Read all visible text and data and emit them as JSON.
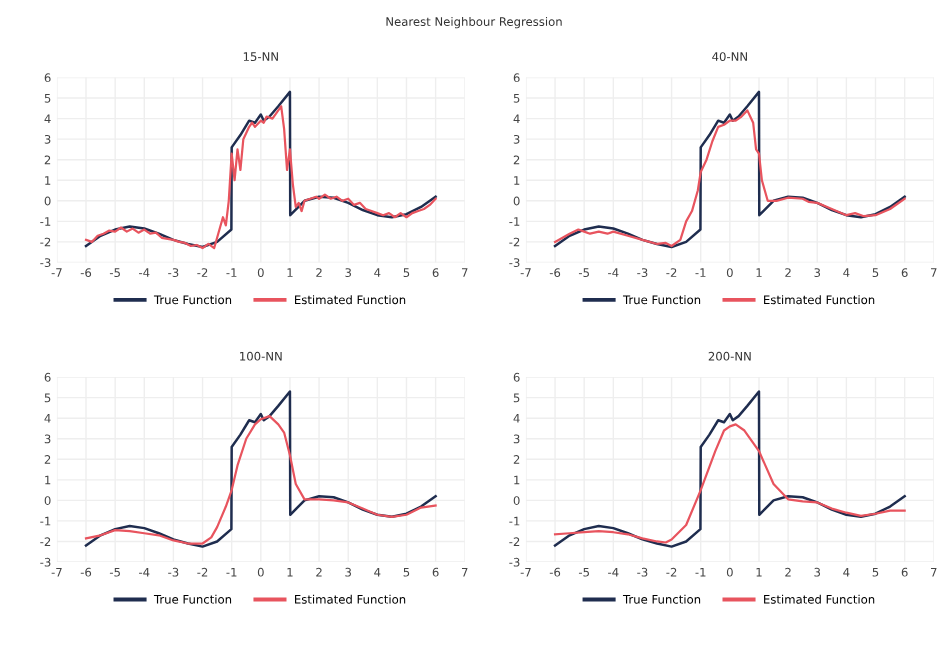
{
  "chart_data": [
    {
      "type": "line",
      "title": "15-NN",
      "annotations": [
        "Nearest Neighbour Regression"
      ],
      "xlim": [
        -7,
        7
      ],
      "xticks": [
        -7,
        -6,
        -5,
        -4,
        -3,
        -2,
        -1,
        0,
        1,
        2,
        3,
        4,
        5,
        6,
        7
      ],
      "ylim": [
        -3,
        6
      ],
      "yticks": [
        -3,
        -2,
        -1,
        0,
        1,
        2,
        3,
        4,
        5,
        6
      ],
      "grid": true,
      "legend": "bottom",
      "line_style": "solid",
      "series": [
        {
          "name": "True Function",
          "color": "#1f2d4f",
          "x": [
            -6,
            -5.5,
            -5,
            -4.5,
            -4,
            -3.5,
            -3,
            -2.5,
            -2,
            -1.5,
            -1.01,
            -1,
            -0.7,
            -0.4,
            -0.2,
            0,
            0.1,
            0.3,
            0.6,
            1,
            1.01,
            1.5,
            2,
            2.5,
            3,
            3.5,
            4,
            4.5,
            5,
            5.5,
            6
          ],
          "values": [
            -2.2,
            -1.7,
            -1.4,
            -1.25,
            -1.35,
            -1.6,
            -1.9,
            -2.1,
            -2.25,
            -2.0,
            -1.4,
            2.6,
            3.2,
            3.9,
            3.8,
            4.2,
            3.9,
            4.1,
            4.6,
            5.3,
            -0.7,
            0.0,
            0.2,
            0.15,
            -0.1,
            -0.45,
            -0.7,
            -0.8,
            -0.65,
            -0.3,
            0.2
          ]
        },
        {
          "name": "Estimated Function",
          "color": "#e8545e",
          "x": [
            -6,
            -5.8,
            -5.6,
            -5.4,
            -5.2,
            -5,
            -4.8,
            -4.6,
            -4.4,
            -4.2,
            -4,
            -3.8,
            -3.6,
            -3.4,
            -3.2,
            -3,
            -2.8,
            -2.6,
            -2.4,
            -2.2,
            -2,
            -1.8,
            -1.6,
            -1.5,
            -1.3,
            -1.2,
            -1.1,
            -1.0,
            -0.9,
            -0.8,
            -0.7,
            -0.6,
            -0.4,
            -0.3,
            -0.2,
            0,
            0.1,
            0.2,
            0.4,
            0.6,
            0.7,
            0.8,
            0.9,
            1.0,
            1.1,
            1.2,
            1.3,
            1.4,
            1.5,
            1.7,
            1.9,
            2.0,
            2.2,
            2.4,
            2.6,
            2.8,
            3.0,
            3.2,
            3.4,
            3.6,
            3.8,
            4.0,
            4.2,
            4.4,
            4.6,
            4.8,
            5.0,
            5.2,
            5.4,
            5.6,
            5.8,
            6.0
          ],
          "values": [
            -1.9,
            -2.0,
            -1.7,
            -1.6,
            -1.45,
            -1.5,
            -1.3,
            -1.5,
            -1.35,
            -1.55,
            -1.4,
            -1.6,
            -1.55,
            -1.8,
            -1.85,
            -1.9,
            -2.0,
            -2.05,
            -2.2,
            -2.15,
            -2.3,
            -2.1,
            -2.3,
            -1.8,
            -0.8,
            -1.2,
            0.0,
            2.3,
            1.0,
            2.5,
            1.5,
            3.0,
            3.6,
            3.8,
            3.6,
            3.9,
            3.8,
            4.1,
            4.0,
            4.4,
            4.6,
            3.5,
            1.5,
            2.5,
            0.8,
            -0.3,
            -0.1,
            -0.5,
            0.0,
            0.1,
            0.2,
            0.1,
            0.3,
            0.1,
            0.2,
            0.0,
            0.1,
            -0.2,
            -0.1,
            -0.4,
            -0.5,
            -0.6,
            -0.7,
            -0.6,
            -0.8,
            -0.6,
            -0.8,
            -0.6,
            -0.5,
            -0.4,
            -0.2,
            0.1
          ]
        }
      ]
    },
    {
      "type": "line",
      "title": "40-NN",
      "xlim": [
        -7,
        7
      ],
      "xticks": [
        -7,
        -6,
        -5,
        -4,
        -3,
        -2,
        -1,
        0,
        1,
        2,
        3,
        4,
        5,
        6,
        7
      ],
      "ylim": [
        -3,
        6
      ],
      "yticks": [
        -3,
        -2,
        -1,
        0,
        1,
        2,
        3,
        4,
        5,
        6
      ],
      "grid": true,
      "legend": "bottom",
      "line_style": "solid",
      "series": [
        {
          "name": "True Function",
          "color": "#1f2d4f",
          "x": [
            -6,
            -5.5,
            -5,
            -4.5,
            -4,
            -3.5,
            -3,
            -2.5,
            -2,
            -1.5,
            -1.01,
            -1,
            -0.7,
            -0.4,
            -0.2,
            0,
            0.1,
            0.3,
            0.6,
            1,
            1.01,
            1.5,
            2,
            2.5,
            3,
            3.5,
            4,
            4.5,
            5,
            5.5,
            6
          ],
          "values": [
            -2.2,
            -1.7,
            -1.4,
            -1.25,
            -1.35,
            -1.6,
            -1.9,
            -2.1,
            -2.25,
            -2.0,
            -1.4,
            2.6,
            3.2,
            3.9,
            3.8,
            4.2,
            3.9,
            4.1,
            4.6,
            5.3,
            -0.7,
            0.0,
            0.2,
            0.15,
            -0.1,
            -0.45,
            -0.7,
            -0.8,
            -0.65,
            -0.3,
            0.2
          ]
        },
        {
          "name": "Estimated Function",
          "color": "#e8545e",
          "x": [
            -6,
            -5.5,
            -5.2,
            -5,
            -4.8,
            -4.5,
            -4.2,
            -4,
            -3.5,
            -3,
            -2.5,
            -2.2,
            -2,
            -1.7,
            -1.5,
            -1.3,
            -1.1,
            -1,
            -0.8,
            -0.6,
            -0.4,
            -0.2,
            0,
            0.2,
            0.4,
            0.6,
            0.8,
            0.9,
            1.0,
            1.1,
            1.3,
            1.6,
            2,
            2.5,
            2.7,
            3,
            3.5,
            4,
            4.3,
            4.6,
            5,
            5.5,
            6
          ],
          "values": [
            -2.0,
            -1.6,
            -1.4,
            -1.5,
            -1.6,
            -1.5,
            -1.6,
            -1.5,
            -1.7,
            -1.9,
            -2.1,
            -2.05,
            -2.2,
            -1.9,
            -1.0,
            -0.5,
            0.5,
            1.4,
            2.0,
            2.9,
            3.6,
            3.7,
            3.9,
            3.9,
            4.1,
            4.4,
            3.8,
            2.5,
            2.3,
            1.0,
            0.0,
            0.0,
            0.15,
            0.1,
            -0.05,
            -0.1,
            -0.4,
            -0.7,
            -0.6,
            -0.75,
            -0.7,
            -0.4,
            0.1
          ]
        }
      ]
    },
    {
      "type": "line",
      "title": "100-NN",
      "xlim": [
        -7,
        7
      ],
      "xticks": [
        -7,
        -6,
        -5,
        -4,
        -3,
        -2,
        -1,
        0,
        1,
        2,
        3,
        4,
        5,
        6,
        7
      ],
      "ylim": [
        -3,
        6
      ],
      "yticks": [
        -3,
        -2,
        -1,
        0,
        1,
        2,
        3,
        4,
        5,
        6
      ],
      "grid": true,
      "legend": "bottom",
      "line_style": "solid",
      "series": [
        {
          "name": "True Function",
          "color": "#1f2d4f",
          "x": [
            -6,
            -5.5,
            -5,
            -4.5,
            -4,
            -3.5,
            -3,
            -2.5,
            -2,
            -1.5,
            -1.01,
            -1,
            -0.7,
            -0.4,
            -0.2,
            0,
            0.1,
            0.3,
            0.6,
            1,
            1.01,
            1.5,
            2,
            2.5,
            3,
            3.5,
            4,
            4.5,
            5,
            5.5,
            6
          ],
          "values": [
            -2.2,
            -1.7,
            -1.4,
            -1.25,
            -1.35,
            -1.6,
            -1.9,
            -2.1,
            -2.25,
            -2.0,
            -1.4,
            2.6,
            3.2,
            3.9,
            3.8,
            4.2,
            3.9,
            4.1,
            4.6,
            5.3,
            -0.7,
            0.0,
            0.2,
            0.15,
            -0.1,
            -0.45,
            -0.7,
            -0.8,
            -0.65,
            -0.3,
            0.2
          ]
        },
        {
          "name": "Estimated Function",
          "color": "#e8545e",
          "x": [
            -6,
            -5.5,
            -5,
            -4.5,
            -4,
            -3.5,
            -3,
            -2.5,
            -2,
            -1.7,
            -1.5,
            -1.2,
            -1,
            -0.8,
            -0.5,
            -0.2,
            0,
            0.3,
            0.6,
            0.8,
            1,
            1.2,
            1.5,
            2,
            2.5,
            3,
            3.5,
            4,
            4.5,
            5,
            5.5,
            6
          ],
          "values": [
            -1.85,
            -1.7,
            -1.45,
            -1.5,
            -1.6,
            -1.7,
            -1.95,
            -2.1,
            -2.1,
            -1.8,
            -1.3,
            -0.3,
            0.5,
            1.7,
            3.0,
            3.7,
            3.95,
            4.1,
            3.7,
            3.3,
            2.2,
            0.8,
            0.05,
            0.05,
            0.0,
            -0.1,
            -0.4,
            -0.7,
            -0.8,
            -0.7,
            -0.35,
            -0.25
          ]
        }
      ]
    },
    {
      "type": "line",
      "title": "200-NN",
      "xlim": [
        -7,
        7
      ],
      "xticks": [
        -7,
        -6,
        -5,
        -4,
        -3,
        -2,
        -1,
        0,
        1,
        2,
        3,
        4,
        5,
        6,
        7
      ],
      "ylim": [
        -3,
        6
      ],
      "yticks": [
        -3,
        -2,
        -1,
        0,
        1,
        2,
        3,
        4,
        5,
        6
      ],
      "grid": true,
      "legend": "bottom",
      "line_style": "solid",
      "series": [
        {
          "name": "True Function",
          "color": "#1f2d4f",
          "x": [
            -6,
            -5.5,
            -5,
            -4.5,
            -4,
            -3.5,
            -3,
            -2.5,
            -2,
            -1.5,
            -1.01,
            -1,
            -0.7,
            -0.4,
            -0.2,
            0,
            0.1,
            0.3,
            0.6,
            1,
            1.01,
            1.5,
            2,
            2.5,
            3,
            3.5,
            4,
            4.5,
            5,
            5.5,
            6
          ],
          "values": [
            -2.2,
            -1.7,
            -1.4,
            -1.25,
            -1.35,
            -1.6,
            -1.9,
            -2.1,
            -2.25,
            -2.0,
            -1.4,
            2.6,
            3.2,
            3.9,
            3.8,
            4.2,
            3.9,
            4.1,
            4.6,
            5.3,
            -0.7,
            0.0,
            0.2,
            0.15,
            -0.1,
            -0.45,
            -0.7,
            -0.8,
            -0.65,
            -0.3,
            0.2
          ]
        },
        {
          "name": "Estimated Function",
          "color": "#e8545e",
          "x": [
            -6,
            -5.5,
            -5,
            -4.5,
            -4,
            -3.5,
            -3,
            -2.5,
            -2.2,
            -2,
            -1.5,
            -1,
            -0.5,
            -0.2,
            0,
            0.2,
            0.5,
            1,
            1.5,
            2,
            2.5,
            3,
            3.5,
            4,
            4.5,
            5,
            5.5,
            6
          ],
          "values": [
            -1.65,
            -1.6,
            -1.55,
            -1.5,
            -1.55,
            -1.65,
            -1.85,
            -2.0,
            -2.05,
            -1.9,
            -1.2,
            0.5,
            2.4,
            3.4,
            3.6,
            3.7,
            3.4,
            2.4,
            0.8,
            0.05,
            -0.05,
            -0.1,
            -0.4,
            -0.6,
            -0.75,
            -0.65,
            -0.5,
            -0.5
          ]
        }
      ]
    }
  ]
}
